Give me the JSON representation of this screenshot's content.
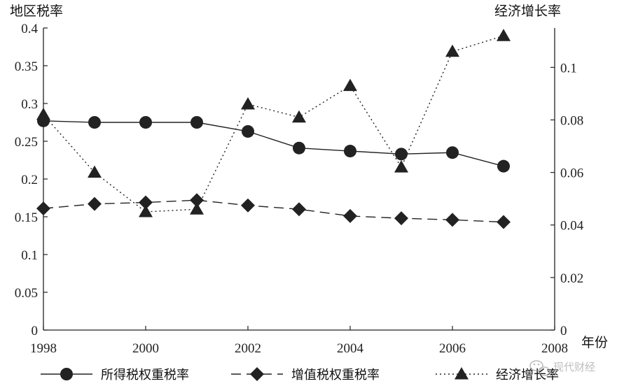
{
  "chart_data": {
    "type": "line",
    "x": [
      1998,
      1999,
      2000,
      2001,
      2002,
      2003,
      2004,
      2005,
      2006,
      2007
    ],
    "xlabel": "年份",
    "ylabel_left": "地区税率",
    "ylabel_right": "经济增长率",
    "xlim": [
      1998,
      2008
    ],
    "xticks": [
      1998,
      2000,
      2002,
      2004,
      2006,
      2008
    ],
    "ylim_left": [
      0,
      0.4
    ],
    "yticks_left": [
      "0",
      "0.05",
      "0.1",
      "0.15",
      "0.2",
      "0.25",
      "0.3",
      "0.35",
      "0.4"
    ],
    "ylim_right": [
      0,
      0.115
    ],
    "yticks_right": [
      "0",
      "0.02",
      "0.04",
      "0.06",
      "0.08",
      "0.1"
    ],
    "grid": false,
    "legend_position": "bottom",
    "series": [
      {
        "name": "所得税权重税率",
        "axis": "left",
        "marker": "circle",
        "linestyle": "solid",
        "values": [
          0.277,
          0.275,
          0.275,
          0.275,
          0.263,
          0.241,
          0.237,
          0.233,
          0.235,
          0.217
        ]
      },
      {
        "name": "增值税权重税率",
        "axis": "left",
        "marker": "diamond",
        "linestyle": "dashed",
        "values": [
          0.161,
          0.167,
          0.169,
          0.172,
          0.165,
          0.16,
          0.151,
          0.148,
          0.146,
          0.143
        ]
      },
      {
        "name": "经济增长率",
        "axis": "right",
        "marker": "triangle",
        "linestyle": "dotted",
        "values": [
          0.082,
          0.06,
          0.045,
          0.046,
          0.086,
          0.081,
          0.093,
          0.062,
          0.106,
          0.112
        ]
      }
    ]
  },
  "watermark": {
    "text": "现代财经",
    "icon": "wechat-icon"
  },
  "colors": {
    "line": "#222222",
    "marker": "#222222"
  }
}
